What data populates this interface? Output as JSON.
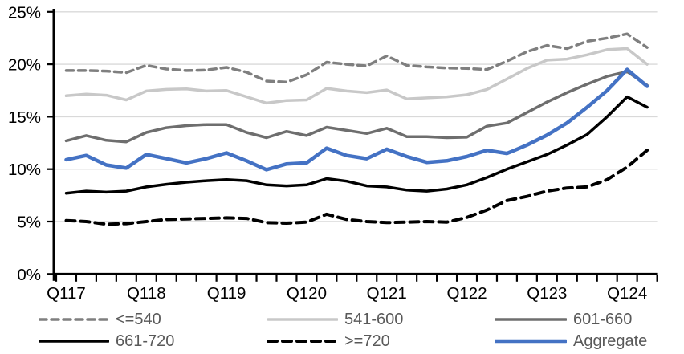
{
  "chart_data": {
    "type": "line",
    "title": "",
    "y_axis": {
      "min": 0,
      "max": 25,
      "step": 5,
      "unit": "%",
      "tick_labels": [
        "0%",
        "5%",
        "10%",
        "15%",
        "20%",
        "25%"
      ]
    },
    "x_axis": {
      "visible_tick_labels": [
        "Q117",
        "Q118",
        "Q119",
        "Q120",
        "Q121",
        "Q122",
        "Q123",
        "Q124"
      ],
      "label_every": 4,
      "categories": [
        "Q117",
        "Q217",
        "Q317",
        "Q417",
        "Q118",
        "Q218",
        "Q318",
        "Q418",
        "Q119",
        "Q219",
        "Q319",
        "Q419",
        "Q120",
        "Q220",
        "Q320",
        "Q420",
        "Q121",
        "Q221",
        "Q321",
        "Q421",
        "Q122",
        "Q222",
        "Q322",
        "Q422",
        "Q123",
        "Q223",
        "Q323",
        "Q423",
        "Q124",
        "Q224"
      ]
    },
    "grid": {
      "horizontal": true,
      "vertical": false,
      "color": "#D9D9D9"
    },
    "legend": {
      "position": "bottom",
      "entries": [
        "<=540",
        "541-600",
        "601-660",
        "661-720",
        ">=720",
        "Aggregate"
      ]
    },
    "series": [
      {
        "name": "<=540",
        "color": "#7F7F7F",
        "dash": "9 6",
        "width": 3.5,
        "values": [
          19.4,
          19.4,
          19.35,
          19.2,
          19.9,
          19.55,
          19.4,
          19.45,
          19.7,
          19.25,
          18.4,
          18.3,
          19.0,
          20.2,
          20.0,
          19.85,
          20.8,
          19.9,
          19.75,
          19.65,
          19.6,
          19.5,
          20.3,
          21.2,
          21.8,
          21.5,
          22.2,
          22.5,
          22.9,
          21.6
        ]
      },
      {
        "name": "541-600",
        "color": "#C8C8C8",
        "dash": null,
        "width": 3.5,
        "values": [
          17.0,
          17.15,
          17.05,
          16.6,
          17.45,
          17.6,
          17.65,
          17.45,
          17.5,
          16.9,
          16.3,
          16.55,
          16.6,
          17.7,
          17.45,
          17.3,
          17.55,
          16.7,
          16.8,
          16.9,
          17.1,
          17.6,
          18.6,
          19.6,
          20.4,
          20.5,
          20.9,
          21.4,
          21.5,
          20.0
        ]
      },
      {
        "name": "601-660",
        "color": "#6E6E6E",
        "dash": null,
        "width": 3.5,
        "values": [
          12.7,
          13.2,
          12.75,
          12.6,
          13.5,
          13.95,
          14.15,
          14.25,
          14.25,
          13.5,
          13.0,
          13.6,
          13.2,
          14.0,
          13.7,
          13.4,
          13.9,
          13.1,
          13.1,
          13.0,
          13.05,
          14.1,
          14.4,
          15.4,
          16.4,
          17.3,
          18.1,
          18.85,
          19.3,
          18.0
        ]
      },
      {
        "name": "661-720",
        "color": "#000000",
        "dash": null,
        "width": 3.5,
        "values": [
          7.7,
          7.9,
          7.8,
          7.9,
          8.3,
          8.55,
          8.75,
          8.9,
          9.0,
          8.9,
          8.5,
          8.4,
          8.5,
          9.1,
          8.85,
          8.4,
          8.3,
          8.0,
          7.9,
          8.1,
          8.5,
          9.2,
          10.0,
          10.7,
          11.4,
          12.3,
          13.3,
          15.0,
          16.9,
          15.9
        ]
      },
      {
        "name": ">=720",
        "color": "#000000",
        "dash": "11 7",
        "width": 4,
        "values": [
          5.1,
          5.0,
          4.75,
          4.8,
          5.0,
          5.2,
          5.25,
          5.3,
          5.35,
          5.3,
          4.9,
          4.85,
          4.95,
          5.7,
          5.2,
          5.0,
          4.9,
          4.95,
          5.0,
          4.95,
          5.4,
          6.1,
          7.0,
          7.4,
          7.9,
          8.2,
          8.3,
          9.0,
          10.2,
          11.8
        ]
      },
      {
        "name": "Aggregate",
        "color": "#4472C4",
        "dash": null,
        "width": 4.5,
        "values": [
          10.9,
          11.3,
          10.4,
          10.1,
          11.4,
          11.0,
          10.6,
          11.0,
          11.55,
          10.8,
          9.95,
          10.5,
          10.6,
          12.0,
          11.3,
          11.0,
          11.9,
          11.2,
          10.65,
          10.8,
          11.2,
          11.8,
          11.5,
          12.3,
          13.25,
          14.4,
          15.9,
          17.5,
          19.5,
          17.9
        ]
      }
    ],
    "colors": {
      "axis": "#000000",
      "tick_label": "#000000",
      "legend_label": "#595959",
      "background": "#FFFFFF"
    }
  }
}
